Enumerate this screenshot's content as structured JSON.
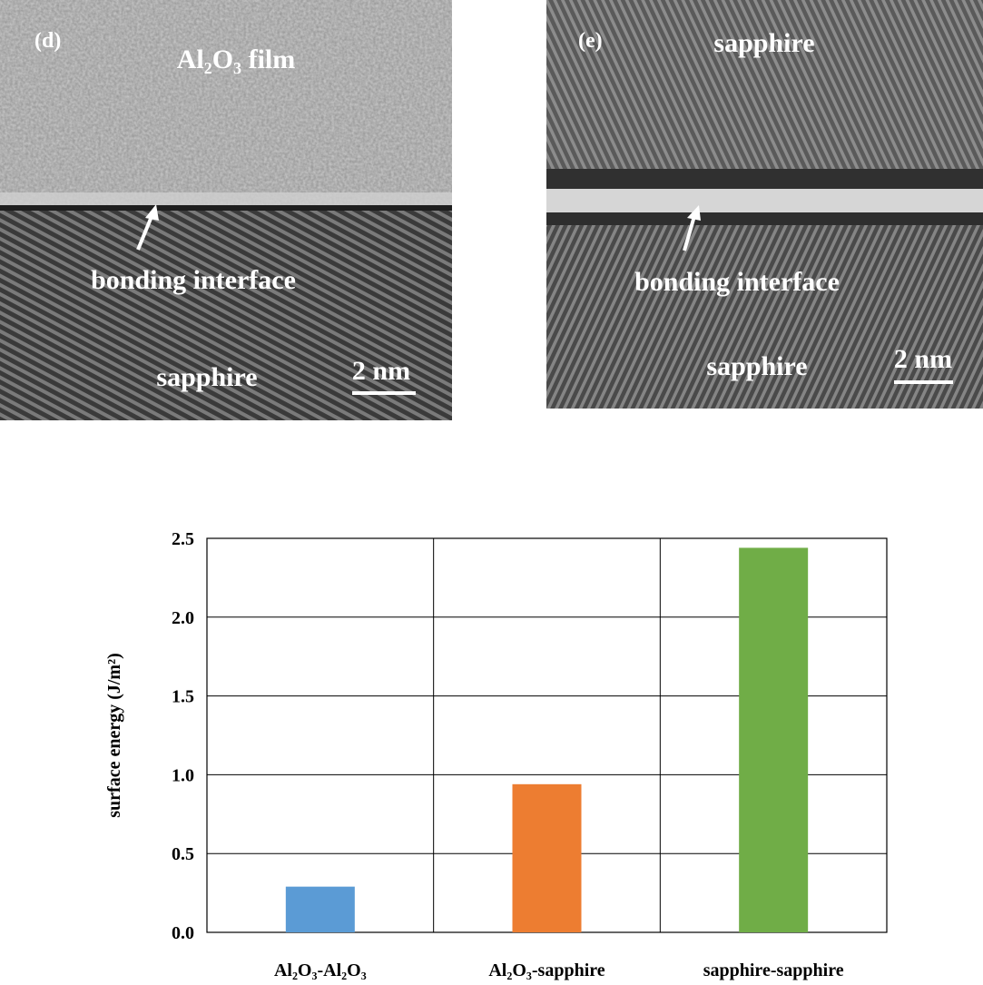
{
  "images": [
    {
      "label": "(d)",
      "top": "Al₂O₃ film",
      "interface": "bonding interface",
      "bottom": "sapphire",
      "scale_bar": "2 nm"
    },
    {
      "label": "(e)",
      "top": "sapphire",
      "interface": "bonding interface",
      "bottom": "sapphire",
      "scale_bar": "2 nm"
    }
  ],
  "chart_data": {
    "type": "bar",
    "y_label": "surface energy (J/m²)",
    "categories": [
      "Al₂O₃-Al₂O₃",
      "Al₂O₃-sapphire",
      "sapphire-sapphire"
    ],
    "values": [
      0.29,
      0.94,
      2.44
    ],
    "colors": [
      "#5b9bd5",
      "#ed7d31",
      "#70ad47"
    ],
    "ylim": [
      0,
      2.5
    ],
    "yticks": [
      {
        "value": 0,
        "label": "0.0"
      },
      0.5,
      {
        "value": 1,
        "label": "1.0"
      },
      1.5,
      {
        "value": 2,
        "label": "2.0"
      },
      2.5
    ],
    "grid": true
  }
}
